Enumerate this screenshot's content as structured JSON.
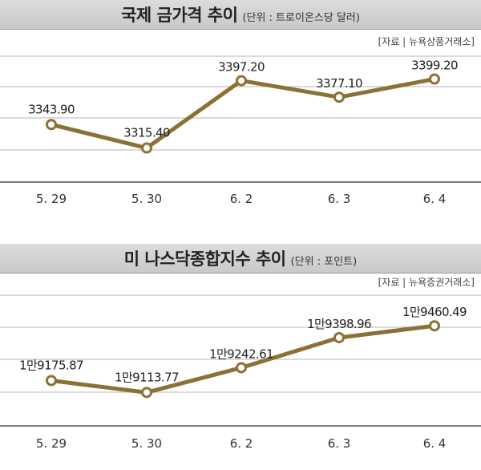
{
  "chart_data": [
    {
      "type": "line",
      "title": "국제 금가격 추이",
      "unit": "(단위 : 트로이온스당 달러)",
      "source": "[자료 | 뉴욕상품거래소]",
      "categories": [
        "5. 29",
        "5. 30",
        "6. 2",
        "6. 3",
        "6. 4"
      ],
      "values": [
        3343.9,
        3315.4,
        3397.2,
        3377.1,
        3399.2
      ],
      "labels": [
        "3343.90",
        "3315.40",
        "3397.20",
        "3377.10",
        "3399.20"
      ],
      "ylim": [
        3274,
        3427
      ],
      "grid": true,
      "color": "#8b7136"
    },
    {
      "type": "line",
      "title": "미 나스닥종합지수 추이",
      "unit": "(단위 : 포인트)",
      "source": "[자료 | 뉴욕증권거래소]",
      "categories": [
        "5. 29",
        "5. 30",
        "6. 2",
        "6. 3",
        "6. 4"
      ],
      "values": [
        19175.87,
        19113.77,
        19242.61,
        19398.96,
        19460.49
      ],
      "labels": [
        "1만9175.87",
        "1만9113.77",
        "1만9242.61",
        "1만9398.96",
        "1만9460.49"
      ],
      "ylim": [
        18940,
        19620
      ],
      "grid": true,
      "color": "#8b7136"
    }
  ]
}
